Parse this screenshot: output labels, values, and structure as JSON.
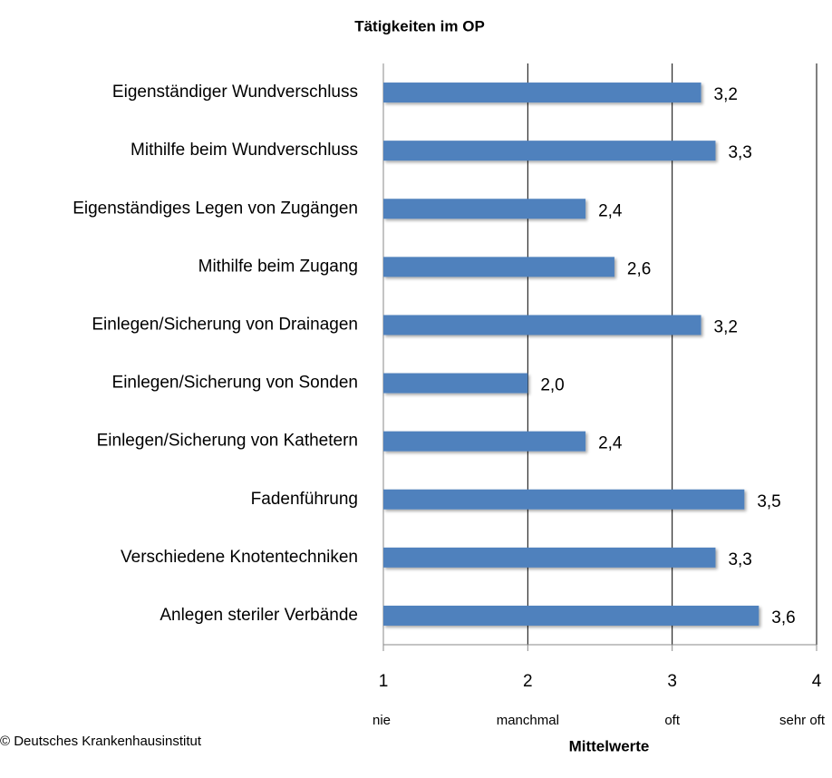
{
  "chart_data": {
    "type": "bar",
    "orientation": "horizontal",
    "title": "Tätigkeiten im OP",
    "x_label": "Mittelwerte",
    "source": "© Deutsches Krankenhausinstitut",
    "categories": [
      "Eigenständiger Wundverschluss",
      "Mithilfe beim Wundverschluss",
      "Eigenständiges Legen von Zugängen",
      "Mithilfe beim Zugang",
      "Einlegen/Sicherung von Drainagen",
      "Einlegen/Sicherung von Sonden",
      "Einlegen/Sicherung von Kathetern",
      "Fadenführung",
      "Verschiedene Knotentechniken",
      "Anlegen steriler Verbände"
    ],
    "values": [
      3.2,
      3.3,
      2.4,
      2.6,
      3.2,
      2.0,
      2.4,
      3.5,
      3.3,
      3.6
    ],
    "value_labels": [
      "3,2",
      "3,3",
      "2,4",
      "2,6",
      "3,2",
      "2,0",
      "2,4",
      "3,5",
      "3,3",
      "3,6"
    ],
    "color": "#4f81bd",
    "xlim": [
      1,
      4
    ],
    "xticks": [
      1,
      2,
      3,
      4
    ],
    "xtick_descriptions": [
      "nie",
      "manchmal",
      "oft",
      "sehr oft"
    ],
    "grid": true
  }
}
